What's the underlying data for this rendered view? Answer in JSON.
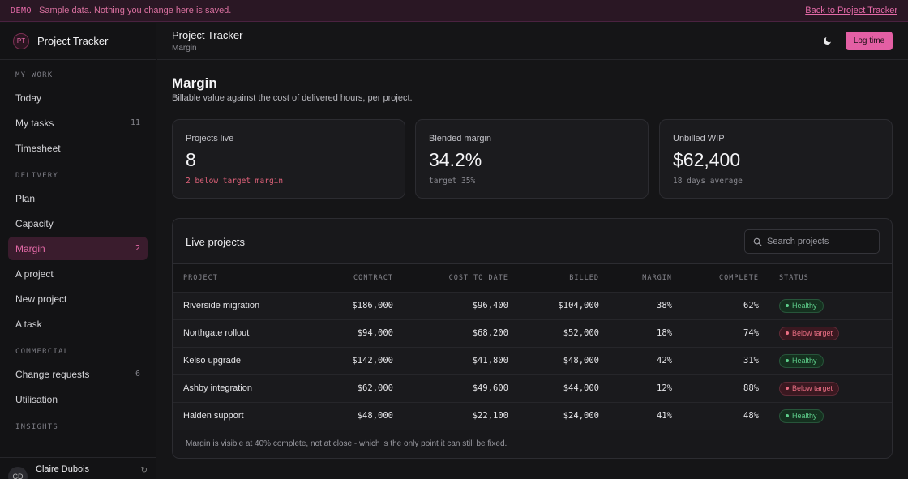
{
  "banner": {
    "tag": "DEMO",
    "message": "Sample data. Nothing you change here is saved.",
    "back_link": "Back to Project Tracker"
  },
  "sidebar": {
    "logo": "PT",
    "app_name": "Project Tracker",
    "sections": [
      {
        "label": "MY WORK",
        "items": [
          {
            "label": "Today",
            "count": ""
          },
          {
            "label": "My tasks",
            "count": "11"
          },
          {
            "label": "Timesheet",
            "count": ""
          }
        ]
      },
      {
        "label": "DELIVERY",
        "items": [
          {
            "label": "Plan",
            "count": ""
          },
          {
            "label": "Capacity",
            "count": ""
          },
          {
            "label": "Margin",
            "count": "2",
            "active": true
          },
          {
            "label": "A project",
            "count": ""
          },
          {
            "label": "New project",
            "count": ""
          },
          {
            "label": "A task",
            "count": ""
          }
        ]
      },
      {
        "label": "COMMERCIAL",
        "items": [
          {
            "label": "Change requests",
            "count": "6"
          },
          {
            "label": "Utilisation",
            "count": ""
          }
        ]
      },
      {
        "label": "INSIGHTS",
        "items": []
      }
    ],
    "user": {
      "initials": "CD",
      "name": "Claire Dubois"
    }
  },
  "topbar": {
    "title": "Project Tracker",
    "subtitle": "Margin",
    "theme_icon": "moon-icon",
    "log_button": "Log time"
  },
  "page": {
    "title": "Margin",
    "subtitle": "Billable value against the cost of delivered hours, per project."
  },
  "cards": [
    {
      "label": "Projects live",
      "value": "8",
      "note": "2 below target margin",
      "warn": true
    },
    {
      "label": "Blended margin",
      "value": "34.2%",
      "note": "target 35%",
      "warn": false
    },
    {
      "label": "Unbilled WIP",
      "value": "$62,400",
      "note": "18 days average",
      "warn": false
    }
  ],
  "table": {
    "title": "Live projects",
    "search_placeholder": "Search projects",
    "columns": [
      "PROJECT",
      "CONTRACT",
      "COST TO DATE",
      "BILLED",
      "MARGIN",
      "COMPLETE",
      "STATUS"
    ],
    "rows": [
      {
        "project": "Riverside migration",
        "contract": "$186,000",
        "cost": "$96,400",
        "billed": "$104,000",
        "margin": "38%",
        "complete": "62%",
        "status": "Healthy",
        "ok": true
      },
      {
        "project": "Northgate rollout",
        "contract": "$94,000",
        "cost": "$68,200",
        "billed": "$52,000",
        "margin": "18%",
        "complete": "74%",
        "status": "Below target",
        "ok": false
      },
      {
        "project": "Kelso upgrade",
        "contract": "$142,000",
        "cost": "$41,800",
        "billed": "$48,000",
        "margin": "42%",
        "complete": "31%",
        "status": "Healthy",
        "ok": true
      },
      {
        "project": "Ashby integration",
        "contract": "$62,000",
        "cost": "$49,600",
        "billed": "$44,000",
        "margin": "12%",
        "complete": "88%",
        "status": "Below target",
        "ok": false
      },
      {
        "project": "Halden support",
        "contract": "$48,000",
        "cost": "$22,100",
        "billed": "$24,000",
        "margin": "41%",
        "complete": "48%",
        "status": "Healthy",
        "ok": true
      }
    ],
    "footnote": "Margin is visible at 40% complete, not at close - which is the only point it can still be fixed."
  }
}
